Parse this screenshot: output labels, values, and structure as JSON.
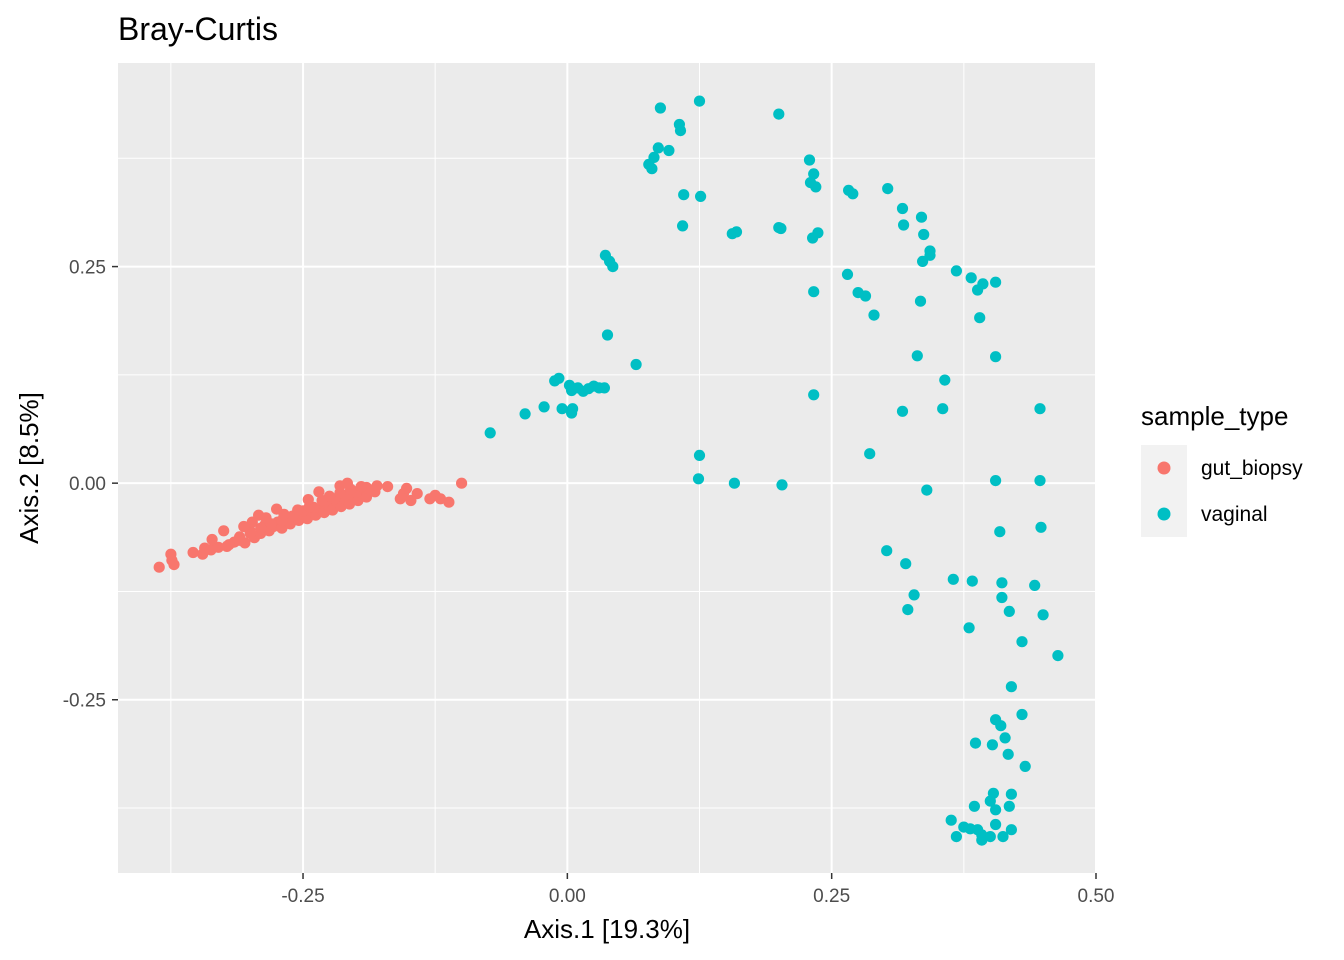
{
  "colors": {
    "gut_biopsy": "#F8766D",
    "vaginal": "#00BFC4",
    "panel": "#EBEBEB",
    "grid": "#FFFFFF"
  },
  "chart_data": {
    "type": "scatter",
    "title": "Bray-Curtis",
    "xlabel": "Axis.1   [19.3%]",
    "ylabel": "Axis.2   [8.5%]",
    "xlim": [
      -0.425,
      0.5
    ],
    "ylim": [
      -0.45,
      0.485
    ],
    "x_ticks": [
      -0.25,
      0.0,
      0.25,
      0.5
    ],
    "x_tick_labels": [
      "-0.25",
      "0.00",
      "0.25",
      "0.50"
    ],
    "y_ticks": [
      -0.25,
      0.0,
      0.25
    ],
    "y_tick_labels": [
      "-0.25",
      "0.00",
      "0.25"
    ],
    "grid": true,
    "legend": {
      "title": "sample_type",
      "position": "right",
      "entries": [
        "gut_biopsy",
        "vaginal"
      ]
    },
    "series": [
      {
        "name": "gut_biopsy",
        "points": [
          [
            -0.386,
            -0.097
          ],
          [
            -0.375,
            -0.082
          ],
          [
            -0.374,
            -0.089
          ],
          [
            -0.372,
            -0.094
          ],
          [
            -0.354,
            -0.08
          ],
          [
            -0.345,
            -0.082
          ],
          [
            -0.343,
            -0.075
          ],
          [
            -0.337,
            -0.077
          ],
          [
            -0.336,
            -0.065
          ],
          [
            -0.33,
            -0.074
          ],
          [
            -0.325,
            -0.055
          ],
          [
            -0.322,
            -0.073
          ],
          [
            -0.315,
            -0.068
          ],
          [
            -0.31,
            -0.062
          ],
          [
            -0.305,
            -0.069
          ],
          [
            -0.3,
            -0.055
          ],
          [
            -0.296,
            -0.063
          ],
          [
            -0.29,
            -0.058
          ],
          [
            -0.286,
            -0.048
          ],
          [
            -0.282,
            -0.055
          ],
          [
            -0.278,
            -0.05
          ],
          [
            -0.274,
            -0.045
          ],
          [
            -0.27,
            -0.052
          ],
          [
            -0.266,
            -0.04
          ],
          [
            -0.262,
            -0.047
          ],
          [
            -0.258,
            -0.038
          ],
          [
            -0.254,
            -0.043
          ],
          [
            -0.25,
            -0.036
          ],
          [
            -0.246,
            -0.041
          ],
          [
            -0.242,
            -0.032
          ],
          [
            -0.238,
            -0.037
          ],
          [
            -0.234,
            -0.029
          ],
          [
            -0.23,
            -0.034
          ],
          [
            -0.226,
            -0.026
          ],
          [
            -0.222,
            -0.031
          ],
          [
            -0.218,
            -0.022
          ],
          [
            -0.214,
            -0.027
          ],
          [
            -0.21,
            -0.019
          ],
          [
            -0.206,
            -0.024
          ],
          [
            -0.202,
            -0.015
          ],
          [
            -0.198,
            -0.02
          ],
          [
            -0.194,
            -0.012
          ],
          [
            -0.19,
            -0.016
          ],
          [
            -0.186,
            -0.008
          ],
          [
            -0.182,
            -0.01
          ],
          [
            -0.19,
            -0.005
          ],
          [
            -0.2,
            -0.01
          ],
          [
            -0.21,
            -0.014
          ],
          [
            -0.22,
            -0.018
          ],
          [
            -0.23,
            -0.022
          ],
          [
            -0.24,
            -0.028
          ],
          [
            -0.25,
            -0.032
          ],
          [
            -0.26,
            -0.038
          ],
          [
            -0.27,
            -0.043
          ],
          [
            -0.28,
            -0.047
          ],
          [
            -0.29,
            -0.052
          ],
          [
            -0.3,
            -0.058
          ],
          [
            -0.31,
            -0.066
          ],
          [
            -0.32,
            -0.071
          ],
          [
            -0.298,
            -0.045
          ],
          [
            -0.285,
            -0.04
          ],
          [
            -0.268,
            -0.036
          ],
          [
            -0.255,
            -0.031
          ],
          [
            -0.244,
            -0.027
          ],
          [
            -0.232,
            -0.02
          ],
          [
            -0.225,
            -0.015
          ],
          [
            -0.215,
            -0.011
          ],
          [
            -0.205,
            -0.007
          ],
          [
            -0.195,
            -0.004
          ],
          [
            -0.18,
            -0.003
          ],
          [
            -0.17,
            -0.004
          ],
          [
            -0.158,
            -0.018
          ],
          [
            -0.155,
            -0.012
          ],
          [
            -0.152,
            -0.006
          ],
          [
            -0.148,
            -0.02
          ],
          [
            -0.142,
            -0.012
          ],
          [
            -0.13,
            -0.018
          ],
          [
            -0.125,
            -0.014
          ],
          [
            -0.12,
            -0.018
          ],
          [
            -0.112,
            -0.022
          ],
          [
            -0.1,
            0.0
          ],
          [
            -0.215,
            -0.003
          ],
          [
            -0.208,
            0.0
          ],
          [
            -0.235,
            -0.01
          ],
          [
            -0.245,
            -0.019
          ],
          [
            -0.275,
            -0.03
          ],
          [
            -0.292,
            -0.037
          ],
          [
            -0.306,
            -0.05
          ]
        ]
      },
      {
        "name": "vaginal",
        "points": [
          [
            -0.073,
            0.058
          ],
          [
            -0.04,
            0.08
          ],
          [
            -0.022,
            0.088
          ],
          [
            -0.012,
            0.118
          ],
          [
            -0.008,
            0.121
          ],
          [
            -0.005,
            0.086
          ],
          [
            0.002,
            0.113
          ],
          [
            0.004,
            0.107
          ],
          [
            0.004,
            0.081
          ],
          [
            0.005,
            0.086
          ],
          [
            0.01,
            0.11
          ],
          [
            0.015,
            0.106
          ],
          [
            0.02,
            0.109
          ],
          [
            0.025,
            0.112
          ],
          [
            0.03,
            0.11
          ],
          [
            0.035,
            0.11
          ],
          [
            0.036,
            0.263
          ],
          [
            0.04,
            0.256
          ],
          [
            0.043,
            0.25
          ],
          [
            0.038,
            0.171
          ],
          [
            0.065,
            0.137
          ],
          [
            0.077,
            0.368
          ],
          [
            0.08,
            0.363
          ],
          [
            0.082,
            0.376
          ],
          [
            0.086,
            0.387
          ],
          [
            0.088,
            0.433
          ],
          [
            0.096,
            0.384
          ],
          [
            0.106,
            0.414
          ],
          [
            0.107,
            0.407
          ],
          [
            0.11,
            0.333
          ],
          [
            0.109,
            0.297
          ],
          [
            0.125,
            0.441
          ],
          [
            0.126,
            0.331
          ],
          [
            0.16,
            0.29
          ],
          [
            0.156,
            0.288
          ],
          [
            0.2,
            0.426
          ],
          [
            0.2,
            0.295
          ],
          [
            0.202,
            0.294
          ],
          [
            0.229,
            0.373
          ],
          [
            0.23,
            0.347
          ],
          [
            0.232,
            0.283
          ],
          [
            0.233,
            0.221
          ],
          [
            0.233,
            0.357
          ],
          [
            0.235,
            0.342
          ],
          [
            0.237,
            0.289
          ],
          [
            0.266,
            0.338
          ],
          [
            0.27,
            0.334
          ],
          [
            0.265,
            0.241
          ],
          [
            0.275,
            0.22
          ],
          [
            0.282,
            0.216
          ],
          [
            0.29,
            0.194
          ],
          [
            0.303,
            0.34
          ],
          [
            0.317,
            0.317
          ],
          [
            0.318,
            0.298
          ],
          [
            0.335,
            0.307
          ],
          [
            0.337,
            0.287
          ],
          [
            0.343,
            0.268
          ],
          [
            0.343,
            0.263
          ],
          [
            0.336,
            0.256
          ],
          [
            0.334,
            0.21
          ],
          [
            0.368,
            0.245
          ],
          [
            0.382,
            0.237
          ],
          [
            0.388,
            0.223
          ],
          [
            0.393,
            0.23
          ],
          [
            0.405,
            0.232
          ],
          [
            0.39,
            0.191
          ],
          [
            0.405,
            0.146
          ],
          [
            0.331,
            0.147
          ],
          [
            0.357,
            0.119
          ],
          [
            0.355,
            0.086
          ],
          [
            0.317,
            0.083
          ],
          [
            0.233,
            0.102
          ],
          [
            0.286,
            0.034
          ],
          [
            0.125,
            0.032
          ],
          [
            0.124,
            0.005
          ],
          [
            0.158,
            0.0
          ],
          [
            0.203,
            -0.002
          ],
          [
            0.34,
            -0.008
          ],
          [
            0.405,
            0.003
          ],
          [
            0.447,
            0.003
          ],
          [
            0.447,
            0.086
          ],
          [
            0.448,
            -0.051
          ],
          [
            0.409,
            -0.056
          ],
          [
            0.302,
            -0.078
          ],
          [
            0.32,
            -0.093
          ],
          [
            0.328,
            -0.129
          ],
          [
            0.322,
            -0.146
          ],
          [
            0.365,
            -0.111
          ],
          [
            0.383,
            -0.113
          ],
          [
            0.411,
            -0.115
          ],
          [
            0.442,
            -0.118
          ],
          [
            0.411,
            -0.132
          ],
          [
            0.418,
            -0.148
          ],
          [
            0.45,
            -0.152
          ],
          [
            0.43,
            -0.183
          ],
          [
            0.38,
            -0.167
          ],
          [
            0.464,
            -0.199
          ],
          [
            0.42,
            -0.235
          ],
          [
            0.43,
            -0.267
          ],
          [
            0.405,
            -0.273
          ],
          [
            0.41,
            -0.28
          ],
          [
            0.386,
            -0.3
          ],
          [
            0.402,
            -0.302
          ],
          [
            0.414,
            -0.294
          ],
          [
            0.417,
            -0.313
          ],
          [
            0.433,
            -0.327
          ],
          [
            0.403,
            -0.358
          ],
          [
            0.42,
            -0.359
          ],
          [
            0.385,
            -0.373
          ],
          [
            0.4,
            -0.367
          ],
          [
            0.405,
            -0.377
          ],
          [
            0.418,
            -0.373
          ],
          [
            0.363,
            -0.389
          ],
          [
            0.368,
            -0.408
          ],
          [
            0.375,
            -0.397
          ],
          [
            0.381,
            -0.399
          ],
          [
            0.388,
            -0.4
          ],
          [
            0.392,
            -0.406
          ],
          [
            0.4,
            -0.408
          ],
          [
            0.405,
            -0.394
          ],
          [
            0.412,
            -0.408
          ],
          [
            0.42,
            -0.4
          ],
          [
            0.392,
            -0.412
          ]
        ]
      }
    ]
  }
}
